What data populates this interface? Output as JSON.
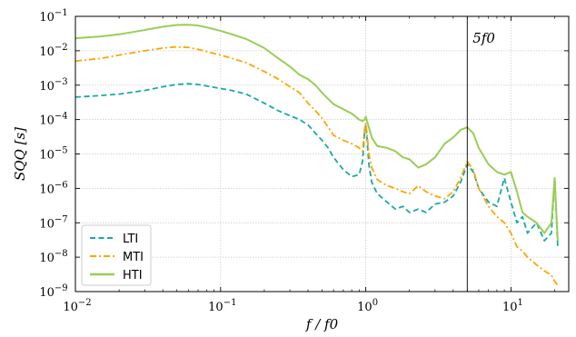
{
  "chart_data": {
    "type": "line",
    "xscale": "log",
    "yscale": "log",
    "xlim": [
      0.01,
      25
    ],
    "ylim": [
      1e-09,
      0.1
    ],
    "grid": true,
    "xlabel": "f / f0",
    "ylabel": "SQQ [s]",
    "x_ticks": [
      "10^-2",
      "10^-1",
      "10^0",
      "10^1"
    ],
    "y_ticks": [
      "10^-9",
      "10^-8",
      "10^-7",
      "10^-6",
      "10^-5",
      "10^-4",
      "10^-3",
      "10^-2",
      "10^-1"
    ],
    "legend_position": "lower-left",
    "annotation": {
      "label": "5f0",
      "x": 5
    },
    "series": [
      {
        "name": "LTI",
        "color": "#1aa9a4",
        "style": "dashed",
        "points": [
          [
            0.01,
            0.00045
          ],
          [
            0.015,
            0.0005
          ],
          [
            0.02,
            0.00055
          ],
          [
            0.03,
            0.0007
          ],
          [
            0.04,
            0.0009
          ],
          [
            0.05,
            0.00105
          ],
          [
            0.06,
            0.0011
          ],
          [
            0.07,
            0.00105
          ],
          [
            0.08,
            0.00095
          ],
          [
            0.1,
            0.0008
          ],
          [
            0.12,
            0.0007
          ],
          [
            0.15,
            0.00055
          ],
          [
            0.2,
            0.0003
          ],
          [
            0.25,
            0.00018
          ],
          [
            0.3,
            0.00013
          ],
          [
            0.35,
            0.0001
          ],
          [
            0.4,
            7e-05
          ],
          [
            0.45,
            4e-05
          ],
          [
            0.5,
            2.5e-05
          ],
          [
            0.55,
            1.5e-05
          ],
          [
            0.6,
            8e-06
          ],
          [
            0.7,
            3.5e-06
          ],
          [
            0.8,
            2.2e-06
          ],
          [
            0.9,
            2.5e-06
          ],
          [
            0.95,
            6e-06
          ],
          [
            0.98,
            4e-05
          ],
          [
            1.0,
            7e-05
          ],
          [
            1.02,
            3e-05
          ],
          [
            1.05,
            5e-06
          ],
          [
            1.1,
            1.5e-06
          ],
          [
            1.2,
            7e-07
          ],
          [
            1.4,
            4e-07
          ],
          [
            1.6,
            2.5e-07
          ],
          [
            1.8,
            3e-07
          ],
          [
            2.0,
            2e-07
          ],
          [
            2.3,
            2.5e-07
          ],
          [
            2.6,
            2e-07
          ],
          [
            3.0,
            3.5e-07
          ],
          [
            3.5,
            4e-07
          ],
          [
            4.0,
            6e-07
          ],
          [
            4.5,
            1.5e-06
          ],
          [
            5.0,
            5e-06
          ],
          [
            5.5,
            3e-06
          ],
          [
            6.0,
            1e-06
          ],
          [
            7.0,
            4e-07
          ],
          [
            8.0,
            3e-07
          ],
          [
            9.0,
            2e-06
          ],
          [
            10.0,
            4e-07
          ],
          [
            11.0,
            1e-07
          ],
          [
            12.0,
            1.5e-07
          ],
          [
            13.0,
            5e-08
          ],
          [
            15.0,
            1e-07
          ],
          [
            17.0,
            3e-08
          ],
          [
            19.0,
            5e-08
          ],
          [
            20.0,
            2e-06
          ],
          [
            21.0,
            2e-08
          ]
        ]
      },
      {
        "name": "MTI",
        "color": "#ffa500",
        "style": "dashdot",
        "points": [
          [
            0.01,
            0.005
          ],
          [
            0.015,
            0.006
          ],
          [
            0.02,
            0.0075
          ],
          [
            0.03,
            0.01
          ],
          [
            0.04,
            0.012
          ],
          [
            0.05,
            0.013
          ],
          [
            0.06,
            0.0125
          ],
          [
            0.07,
            0.011
          ],
          [
            0.08,
            0.0095
          ],
          [
            0.1,
            0.0075
          ],
          [
            0.12,
            0.006
          ],
          [
            0.15,
            0.0045
          ],
          [
            0.2,
            0.0025
          ],
          [
            0.25,
            0.0015
          ],
          [
            0.3,
            0.0009
          ],
          [
            0.35,
            0.0006
          ],
          [
            0.4,
            0.0003
          ],
          [
            0.45,
            0.00018
          ],
          [
            0.5,
            0.00011
          ],
          [
            0.55,
            6e-05
          ],
          [
            0.6,
            3.5e-05
          ],
          [
            0.7,
            2.5e-05
          ],
          [
            0.8,
            2e-05
          ],
          [
            0.9,
            1.5e-05
          ],
          [
            0.95,
            1.2e-05
          ],
          [
            0.98,
            5e-05
          ],
          [
            1.0,
            8e-05
          ],
          [
            1.02,
            4e-05
          ],
          [
            1.05,
            1e-05
          ],
          [
            1.1,
            4e-06
          ],
          [
            1.2,
            1.8e-06
          ],
          [
            1.4,
            1.2e-06
          ],
          [
            1.6,
            1e-06
          ],
          [
            1.8,
            8e-07
          ],
          [
            2.0,
            7e-07
          ],
          [
            2.3,
            1.2e-06
          ],
          [
            2.6,
            8e-07
          ],
          [
            3.0,
            6e-07
          ],
          [
            3.5,
            5e-07
          ],
          [
            4.0,
            8e-07
          ],
          [
            4.5,
            2e-06
          ],
          [
            5.0,
            6e-06
          ],
          [
            5.5,
            3.5e-06
          ],
          [
            6.0,
            1e-06
          ],
          [
            7.0,
            3e-07
          ],
          [
            8.0,
            1.5e-07
          ],
          [
            9.0,
            1e-07
          ],
          [
            10.0,
            5e-08
          ],
          [
            11.0,
            2e-08
          ],
          [
            12.0,
            1.5e-08
          ],
          [
            13.0,
            1e-08
          ],
          [
            15.0,
            6e-09
          ],
          [
            17.0,
            4e-09
          ],
          [
            19.0,
            3e-09
          ],
          [
            20.0,
            2e-09
          ],
          [
            21.0,
            1.5e-09
          ]
        ]
      },
      {
        "name": "HTI",
        "color": "#9acd55",
        "style": "solid",
        "points": [
          [
            0.01,
            0.023
          ],
          [
            0.015,
            0.026
          ],
          [
            0.02,
            0.03
          ],
          [
            0.03,
            0.04
          ],
          [
            0.04,
            0.05
          ],
          [
            0.05,
            0.056
          ],
          [
            0.06,
            0.057
          ],
          [
            0.07,
            0.054
          ],
          [
            0.08,
            0.048
          ],
          [
            0.1,
            0.038
          ],
          [
            0.12,
            0.03
          ],
          [
            0.15,
            0.022
          ],
          [
            0.2,
            0.012
          ],
          [
            0.25,
            0.006
          ],
          [
            0.3,
            0.0035
          ],
          [
            0.35,
            0.002
          ],
          [
            0.4,
            0.0015
          ],
          [
            0.45,
            0.001
          ],
          [
            0.5,
            0.0006
          ],
          [
            0.55,
            0.0004
          ],
          [
            0.6,
            0.00028
          ],
          [
            0.7,
            0.0002
          ],
          [
            0.8,
            0.00015
          ],
          [
            0.9,
            0.0001
          ],
          [
            0.95,
            9e-05
          ],
          [
            0.98,
            0.0001
          ],
          [
            1.0,
            0.00012
          ],
          [
            1.05,
            6e-05
          ],
          [
            1.1,
            3e-05
          ],
          [
            1.2,
            1.7e-05
          ],
          [
            1.4,
            1.5e-05
          ],
          [
            1.6,
            1.2e-05
          ],
          [
            1.8,
            8e-06
          ],
          [
            2.0,
            7e-06
          ],
          [
            2.3,
            4e-06
          ],
          [
            2.6,
            5e-06
          ],
          [
            3.0,
            8e-06
          ],
          [
            3.5,
            2e-05
          ],
          [
            4.0,
            3e-05
          ],
          [
            4.5,
            5e-05
          ],
          [
            5.0,
            6e-05
          ],
          [
            5.5,
            4e-05
          ],
          [
            6.0,
            1.5e-05
          ],
          [
            7.0,
            5e-06
          ],
          [
            8.0,
            3e-06
          ],
          [
            9.0,
            2.5e-06
          ],
          [
            10.0,
            3e-06
          ],
          [
            11.0,
            8e-07
          ],
          [
            12.0,
            2e-07
          ],
          [
            13.0,
            1.5e-07
          ],
          [
            15.0,
            1e-07
          ],
          [
            17.0,
            5e-08
          ],
          [
            19.0,
            1e-07
          ],
          [
            20.0,
            2e-06
          ],
          [
            21.0,
            3e-08
          ]
        ]
      }
    ]
  }
}
